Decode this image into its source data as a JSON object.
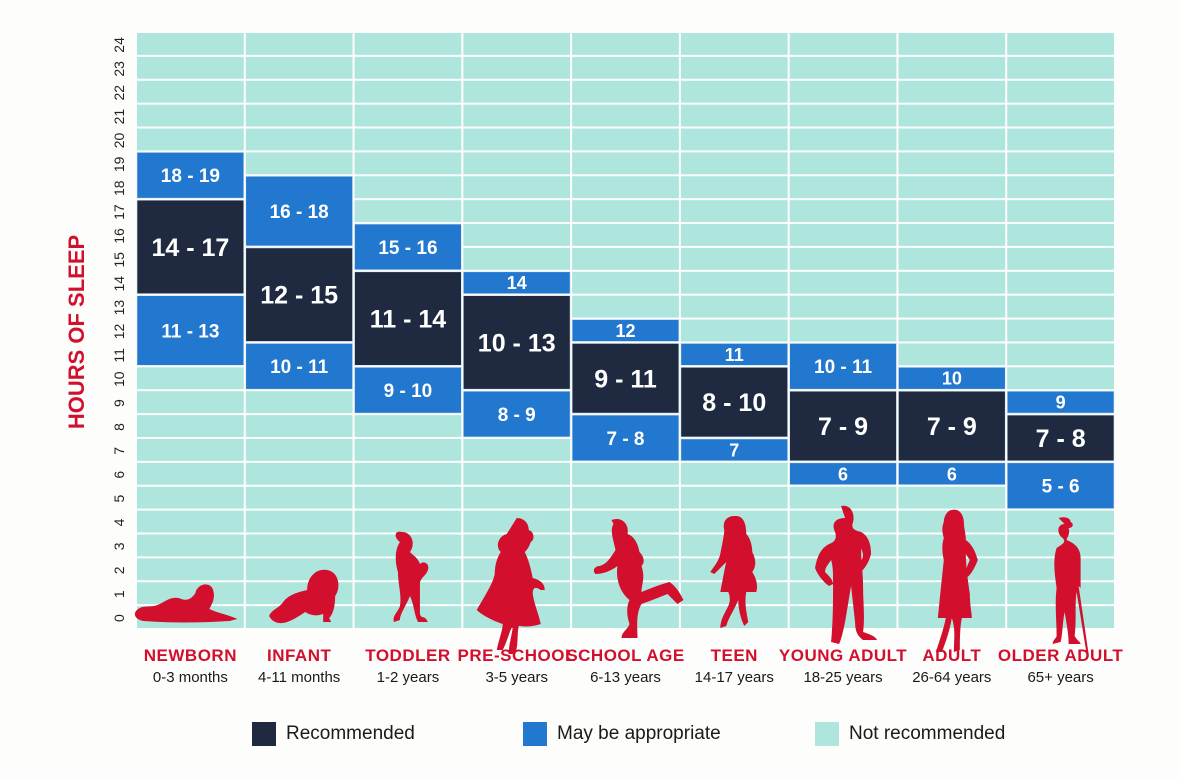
{
  "chart_data": {
    "type": "heatmap",
    "title": "",
    "ylabel": "HOURS OF SLEEP",
    "xlabel": "",
    "ylim": [
      0,
      24
    ],
    "yticks": [
      "0",
      "1",
      "2",
      "3",
      "4",
      "5",
      "6",
      "7",
      "8",
      "9",
      "10",
      "11",
      "12",
      "13",
      "14",
      "15",
      "16",
      "17",
      "18",
      "19",
      "20",
      "21",
      "22",
      "23",
      "24"
    ],
    "categories": [
      {
        "name": "NEWBORN",
        "age": "0-3 months"
      },
      {
        "name": "INFANT",
        "age": "4-11 months"
      },
      {
        "name": "TODDLER",
        "age": "1-2 years"
      },
      {
        "name": "PRE-SCHOOL",
        "age": "3-5 years"
      },
      {
        "name": "SCHOOL AGE",
        "age": "6-13 years"
      },
      {
        "name": "TEEN",
        "age": "14-17 years"
      },
      {
        "name": "YOUNG ADULT",
        "age": "18-25 years"
      },
      {
        "name": "ADULT",
        "age": "26-64 years"
      },
      {
        "name": "OLDER ADULT",
        "age": "65+ years"
      }
    ],
    "series": [
      {
        "name": "Recommended",
        "color": "#1f2a40",
        "ranges": [
          {
            "label": "14 - 17",
            "from": 14,
            "to": 17
          },
          {
            "label": "12 - 15",
            "from": 12,
            "to": 15
          },
          {
            "label": "11 - 14",
            "from": 11,
            "to": 14
          },
          {
            "label": "10 - 13",
            "from": 10,
            "to": 13
          },
          {
            "label": "9 - 11",
            "from": 9,
            "to": 11
          },
          {
            "label": "8 - 10",
            "from": 8,
            "to": 10
          },
          {
            "label": "7 - 9",
            "from": 7,
            "to": 9
          },
          {
            "label": "7 - 9",
            "from": 7,
            "to": 9
          },
          {
            "label": "7 - 8",
            "from": 7,
            "to": 8
          }
        ]
      },
      {
        "name": "May be appropriate (above)",
        "color": "#2277cf",
        "ranges": [
          {
            "label": "18 - 19",
            "from": 18,
            "to": 19
          },
          {
            "label": "16 - 18",
            "from": 16,
            "to": 18
          },
          {
            "label": "15 - 16",
            "from": 15,
            "to": 16
          },
          {
            "label": "14",
            "from": 14,
            "to": 14
          },
          {
            "label": "12",
            "from": 12,
            "to": 12
          },
          {
            "label": "11",
            "from": 11,
            "to": 11
          },
          {
            "label": "10 - 11",
            "from": 10,
            "to": 11
          },
          {
            "label": "10",
            "from": 10,
            "to": 10
          },
          {
            "label": "9",
            "from": 9,
            "to": 9
          }
        ]
      },
      {
        "name": "May be appropriate (below)",
        "color": "#2277cf",
        "ranges": [
          {
            "label": "11 - 13",
            "from": 11,
            "to": 13
          },
          {
            "label": "10 - 11",
            "from": 10,
            "to": 11
          },
          {
            "label": "9 - 10",
            "from": 9,
            "to": 10
          },
          {
            "label": "8 - 9",
            "from": 8,
            "to": 9
          },
          {
            "label": "7 - 8",
            "from": 7,
            "to": 8
          },
          {
            "label": "7",
            "from": 7,
            "to": 7
          },
          {
            "label": "6",
            "from": 6,
            "to": 6
          },
          {
            "label": "6",
            "from": 6,
            "to": 6
          },
          {
            "label": "5 - 6",
            "from": 5,
            "to": 6
          }
        ]
      }
    ],
    "background": {
      "name": "Not recommended",
      "color": "#aee6de"
    },
    "icons": [
      "newborn-silhouette-icon",
      "infant-silhouette-icon",
      "toddler-silhouette-icon",
      "preschool-silhouette-icon",
      "school-age-silhouette-icon",
      "teen-silhouette-icon",
      "young-adult-silhouette-icon",
      "adult-silhouette-icon",
      "older-adult-silhouette-icon"
    ],
    "icon_color": "#d20f2d",
    "legend": [
      {
        "label": "Recommended",
        "color": "#1f2a40"
      },
      {
        "label": "May be appropriate",
        "color": "#2277cf"
      },
      {
        "label": "Not recommended",
        "color": "#aee6de"
      }
    ],
    "legend_position": "bottom",
    "grid": true
  }
}
